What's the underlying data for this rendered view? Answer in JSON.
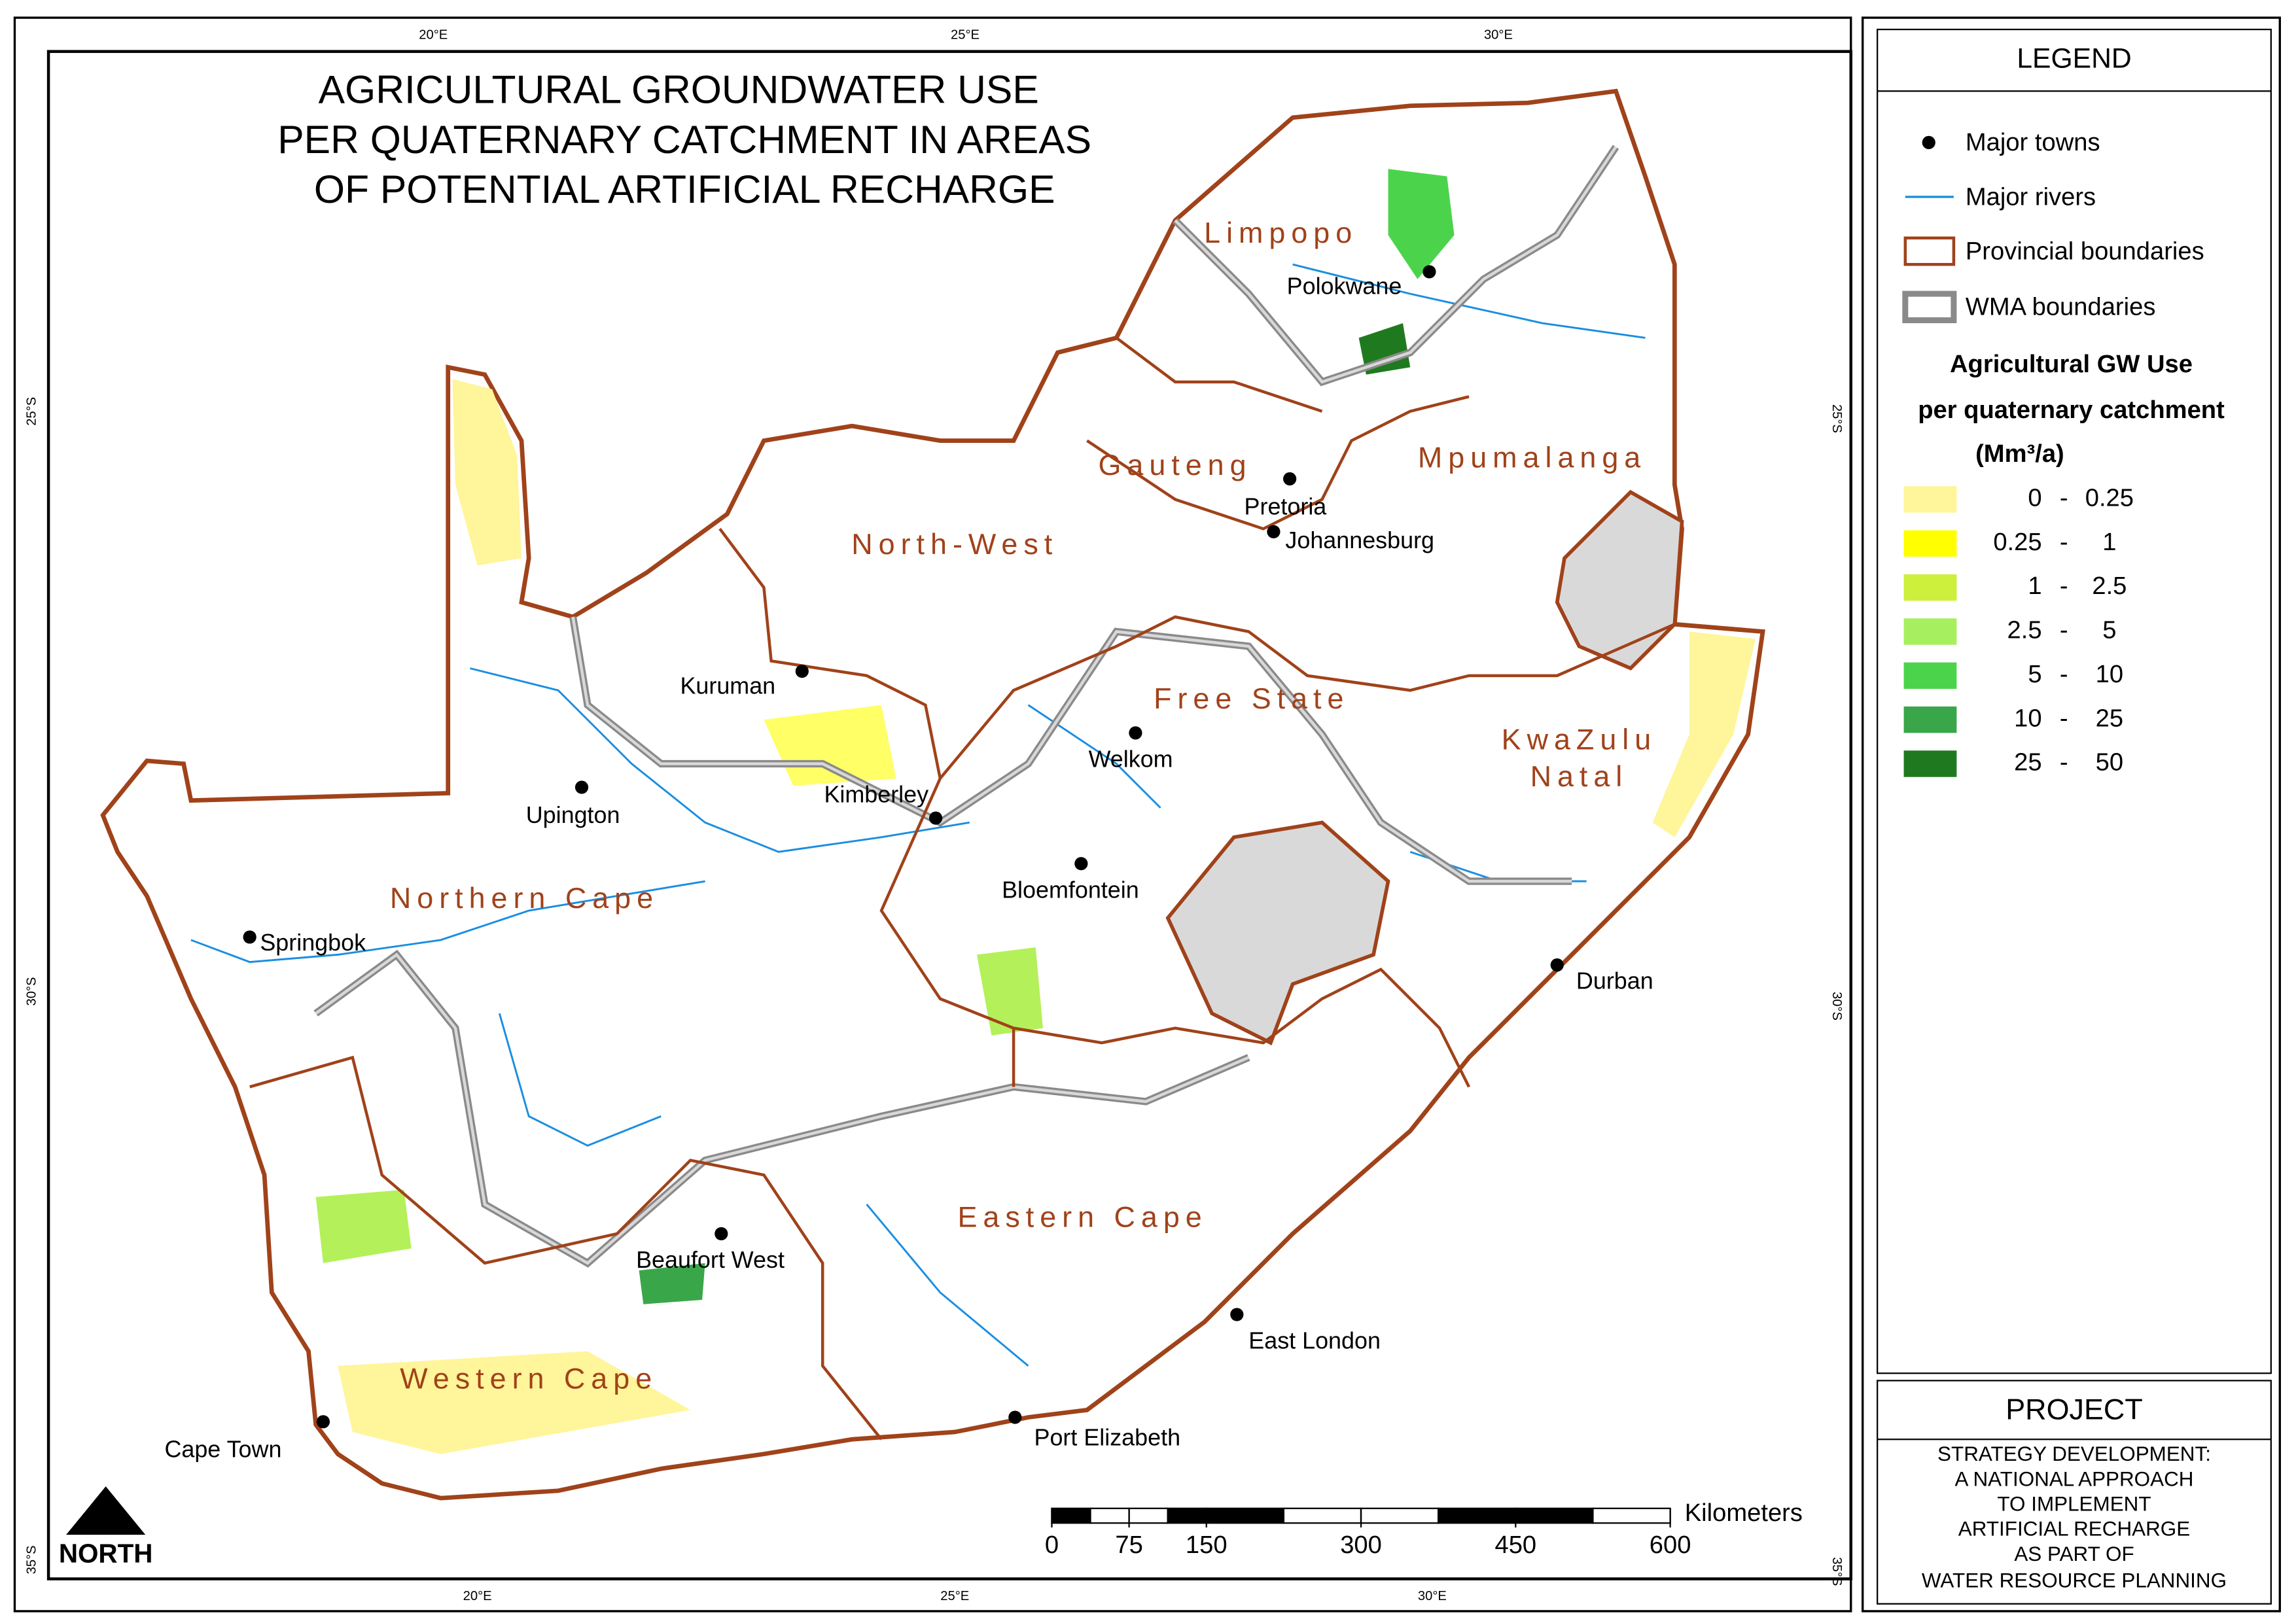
{
  "title": [
    "AGRICULTURAL GROUNDWATER USE",
    "PER QUATERNARY CATCHMENT IN AREAS",
    "OF POTENTIAL ARTIFICIAL RECHARGE"
  ],
  "coordinates": [
    "20°E",
    "25°E",
    "30°E",
    "25°S",
    "30°S",
    "35°S"
  ],
  "provinces": [
    "Limpopo",
    "Gauteng",
    "Mpumalanga",
    "North-West",
    "Free State",
    "KwaZulu",
    "Natal",
    "Northern Cape",
    "Eastern Cape",
    "Western Cape"
  ],
  "towns": [
    "Polokwane",
    "Pretoria",
    "Johannesburg",
    "Kuruman",
    "Welkom",
    "Upington",
    "Kimberley",
    "Bloemfontein",
    "Springbok",
    "Durban",
    "Beaufort West",
    "East London",
    "Cape Town",
    "Port Elizabeth"
  ],
  "north": "NORTH",
  "scale_bar": {
    "unit": "Kilometers",
    "ticks": [
      0,
      75,
      150,
      300,
      450,
      600
    ]
  },
  "legend": {
    "title": "LEGEND",
    "items": [
      "Major towns",
      "Major rivers",
      "Provincial boundaries",
      "WMA boundaries"
    ],
    "heading": [
      "Agricultural GW Use",
      "per quaternary catchment",
      "(Mm³/a)"
    ],
    "class_separator": "-",
    "classes": [
      {
        "from": 0,
        "to": 0.25,
        "color": "#fff59a"
      },
      {
        "from": 0.25,
        "to": 1,
        "color": "#ffff00"
      },
      {
        "from": 1,
        "to": 2.5,
        "color": "#ccf03c"
      },
      {
        "from": 2.5,
        "to": 5,
        "color": "#a6f060"
      },
      {
        "from": 5,
        "to": 10,
        "color": "#4bd44b"
      },
      {
        "from": 10,
        "to": 25,
        "color": "#3aa64a"
      },
      {
        "from": 25,
        "to": 50,
        "color": "#1f7a1f"
      }
    ]
  },
  "project": {
    "title": "PROJECT",
    "lines": [
      "STRATEGY DEVELOPMENT:",
      "A NATIONAL APPROACH",
      "TO IMPLEMENT",
      "ARTIFICIAL RECHARGE",
      "AS PART OF",
      "WATER RESOURCE PLANNING"
    ]
  }
}
